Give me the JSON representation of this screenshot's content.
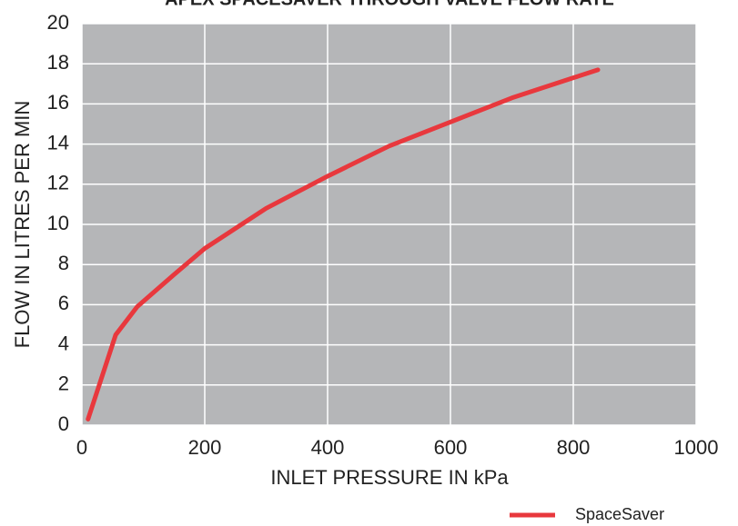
{
  "chart_data": {
    "type": "line",
    "title": "APEX SPACESAVER THROUGH VALVE FLOW RATE",
    "x_label": "INLET PRESSURE IN kPa",
    "y_label": "FLOW IN LITRES PER MIN",
    "x": [
      10,
      55,
      90,
      150,
      200,
      300,
      400,
      500,
      600,
      700,
      800,
      840
    ],
    "series": [
      {
        "name": "SpaceSaver",
        "color": "#e8383d",
        "values": [
          0.3,
          4.5,
          5.9,
          7.5,
          8.8,
          10.8,
          12.4,
          13.9,
          15.1,
          16.3,
          17.3,
          17.7
        ]
      }
    ],
    "xlim": [
      0,
      1000
    ],
    "xticks": [
      0,
      200,
      400,
      600,
      800,
      1000
    ],
    "ylim": [
      0,
      20
    ],
    "yticks": [
      0,
      2,
      4,
      6,
      8,
      10,
      12,
      14,
      16,
      18,
      20
    ],
    "grid": true,
    "legend": "bottom-right"
  }
}
